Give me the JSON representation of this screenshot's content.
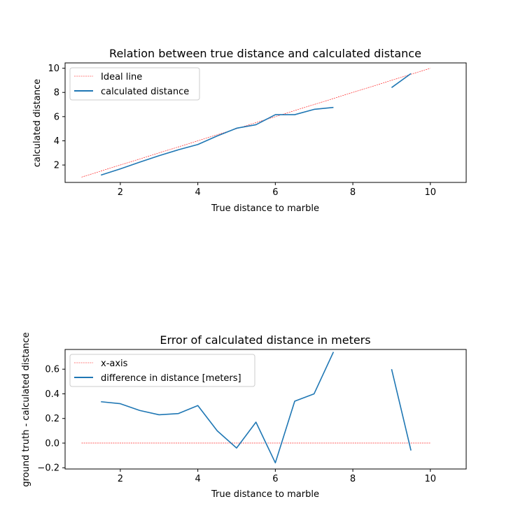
{
  "chart_data": [
    {
      "type": "line",
      "title": "Relation between true distance and calculated distance",
      "xlabel": "True distance to marble",
      "ylabel": "calculated distance",
      "xlim": [
        0.575,
        10.925
      ],
      "ylim": [
        0.56,
        10.44
      ],
      "xticks": [
        2,
        4,
        6,
        8,
        10
      ],
      "yticks": [
        2,
        4,
        6,
        8,
        10
      ],
      "grid": false,
      "legend_position": "upper-left",
      "series": [
        {
          "name": "Ideal line",
          "style": "dashed",
          "color": "#ff0000",
          "x": [
            1,
            10
          ],
          "y": [
            1,
            10
          ]
        },
        {
          "name": "calculated distance",
          "style": "solid",
          "color": "#1f77b4",
          "x": [
            1.5,
            2,
            2.5,
            3,
            3.5,
            4,
            4.5,
            5,
            5.5,
            6,
            6.5,
            7,
            7.5,
            null,
            9,
            9.5
          ],
          "y": [
            1.164,
            1.68,
            2.235,
            2.77,
            3.26,
            3.695,
            4.4,
            5.04,
            5.33,
            6.16,
            6.16,
            6.6,
            6.76,
            null,
            8.4,
            9.56
          ]
        }
      ]
    },
    {
      "type": "line",
      "title": "Error of calculated distance in meters",
      "xlabel": "True distance to marble",
      "ylabel": "ground truth - calculated distance",
      "xlim": [
        0.575,
        10.925
      ],
      "ylim": [
        -0.21,
        0.76
      ],
      "xticks": [
        2,
        4,
        6,
        8,
        10
      ],
      "yticks": [
        -0.2,
        0.0,
        0.2,
        0.4,
        0.6
      ],
      "ytick_labels": [
        "−0.2",
        "0.0",
        "0.2",
        "0.4",
        "0.6"
      ],
      "grid": false,
      "legend_position": "upper-left",
      "series": [
        {
          "name": "x-axis",
          "style": "dashed",
          "color": "#ff0000",
          "x": [
            1,
            10
          ],
          "y": [
            0,
            0
          ]
        },
        {
          "name": "difference in distance [meters]",
          "style": "solid",
          "color": "#1f77b4",
          "x": [
            1.5,
            2,
            2.5,
            3,
            3.5,
            4,
            4.5,
            5,
            5.5,
            6,
            6.5,
            7,
            7.5,
            null,
            9,
            9.5
          ],
          "y": [
            0.336,
            0.32,
            0.265,
            0.23,
            0.24,
            0.305,
            0.1,
            -0.04,
            0.17,
            -0.16,
            0.34,
            0.4,
            0.74,
            null,
            0.6,
            -0.06
          ]
        }
      ]
    }
  ]
}
